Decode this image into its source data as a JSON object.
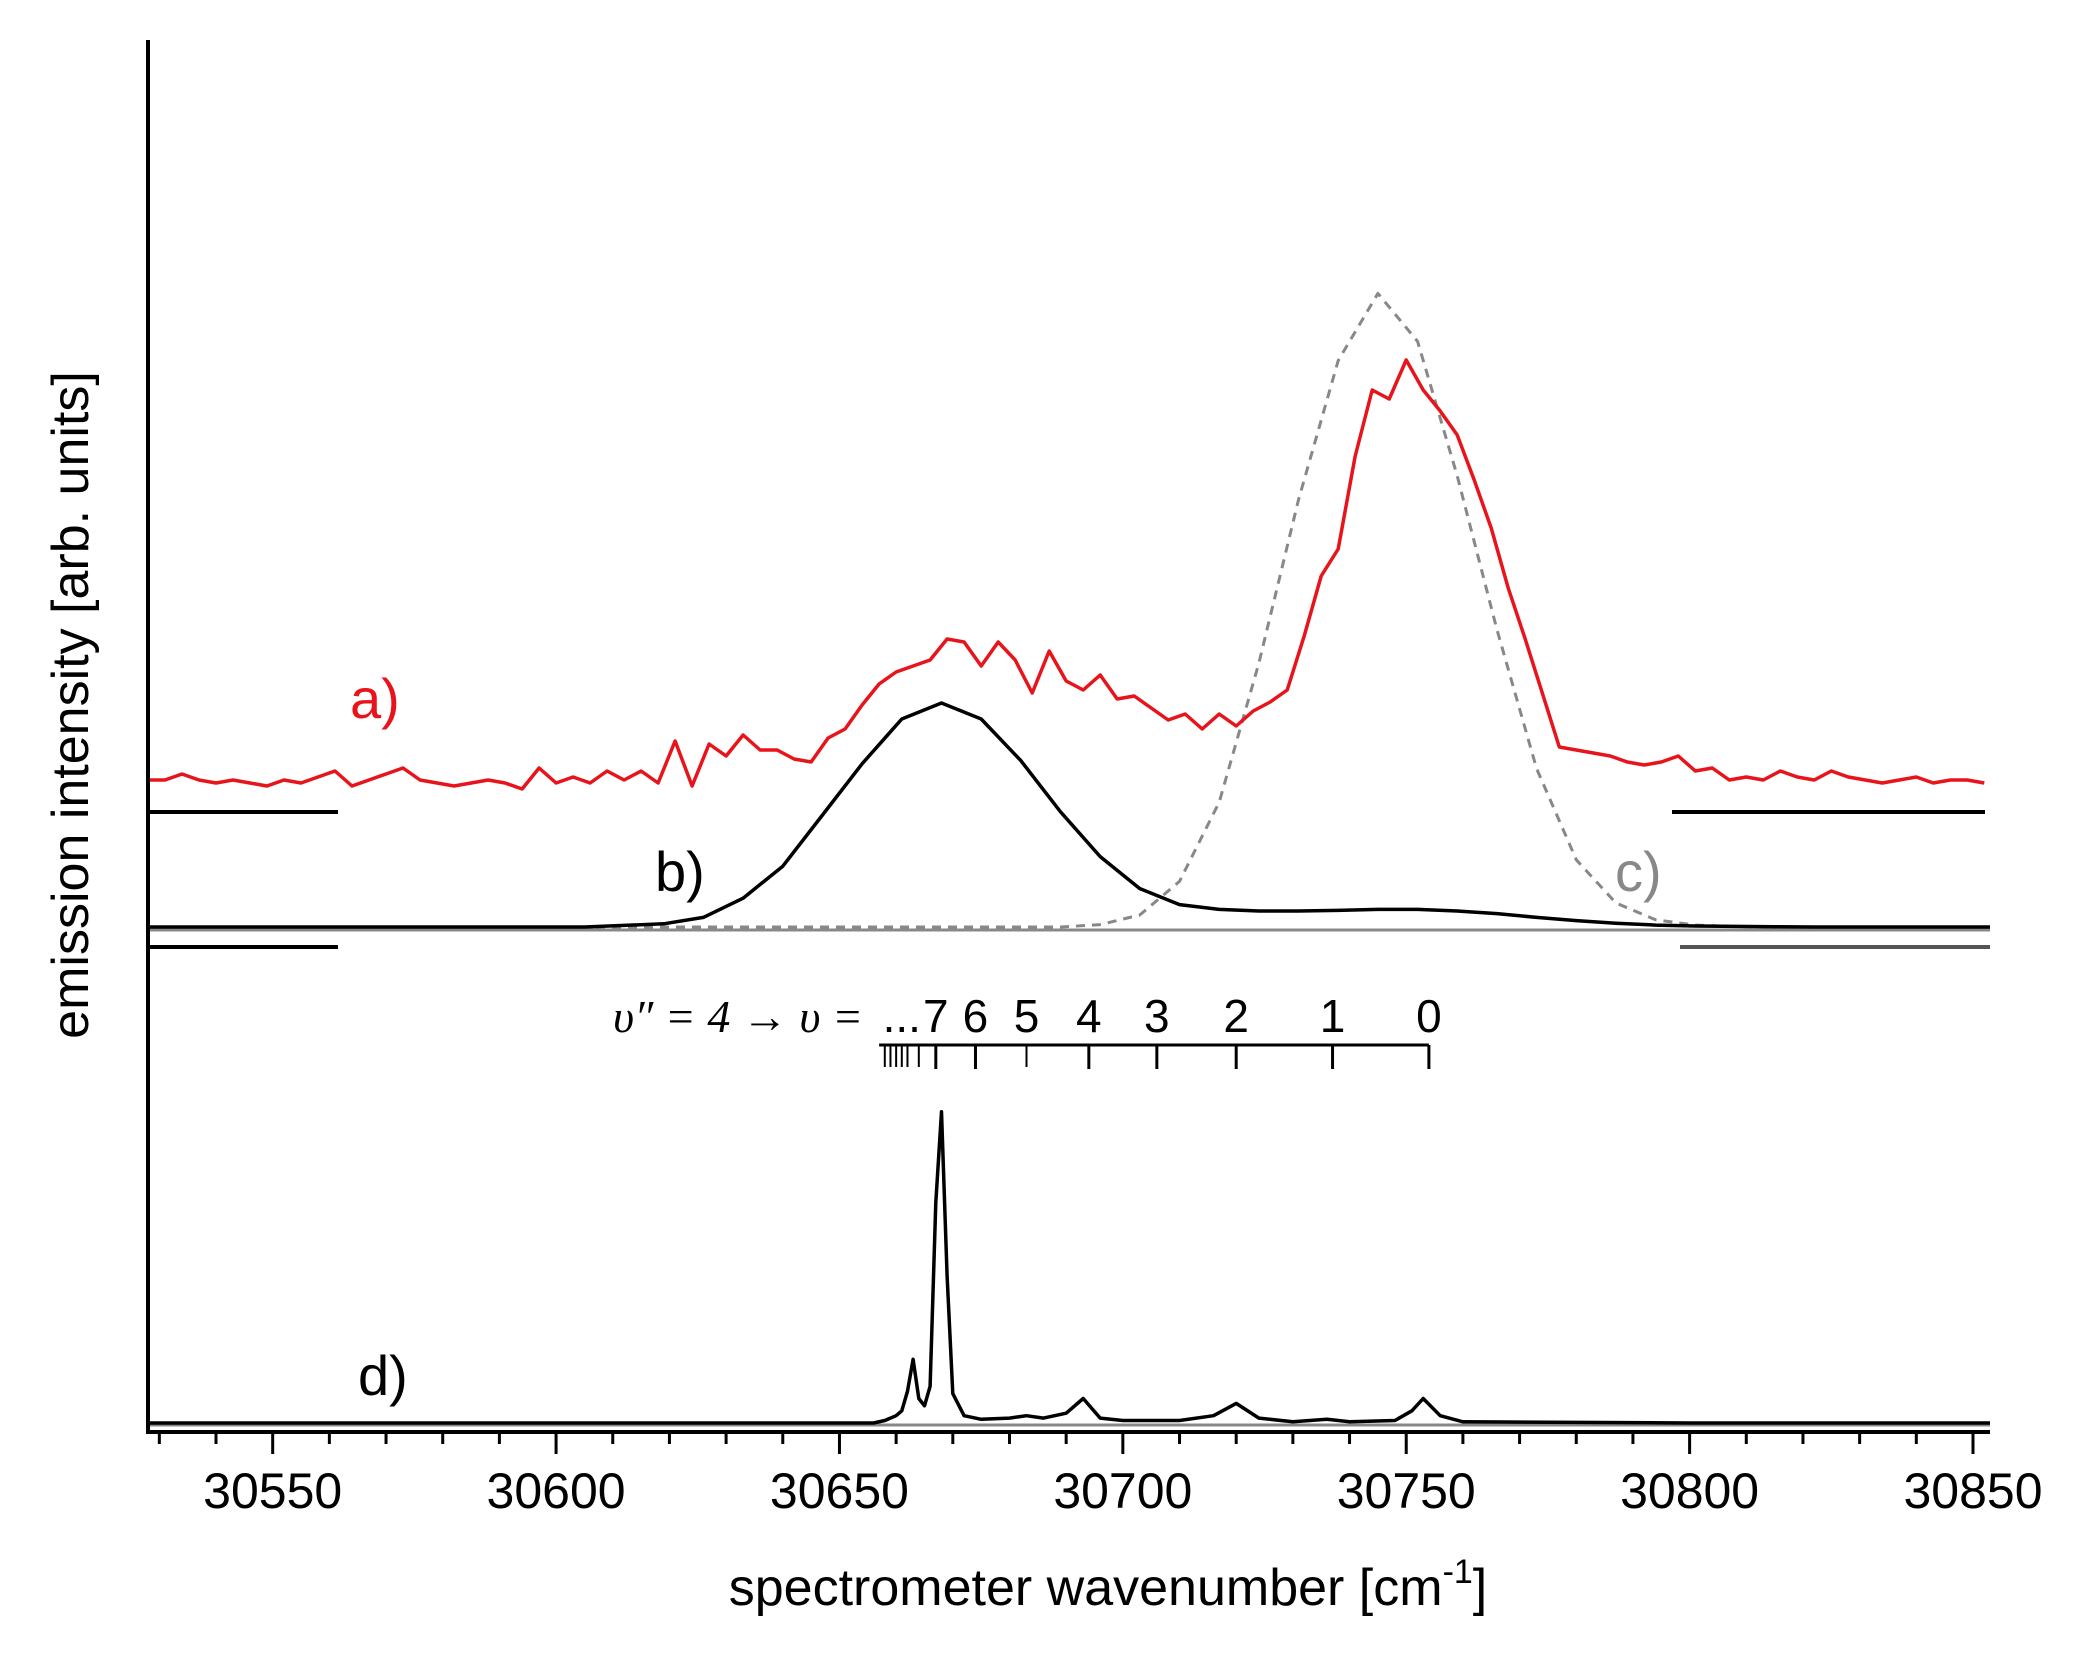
{
  "chart_data": {
    "type": "line",
    "xlabel": "spectrometer wavenumber [cm",
    "xlabel_sup": "-1",
    "xlabel_end": "]",
    "ylabel": "emission intensity [arb. units]",
    "xlim": [
      30528,
      30853
    ],
    "x_ticks": [
      30550,
      30600,
      30650,
      30700,
      30750,
      30800,
      30850
    ],
    "x_tick_labels": [
      "30550",
      "30600",
      "30650",
      "30700",
      "30750",
      "30800",
      "30850"
    ],
    "grid": false,
    "series": [
      {
        "name": "a)",
        "color": "#e8141b",
        "style": "solid",
        "baseline": 0,
        "x": [
          30528,
          30531,
          30534,
          30537,
          30540,
          30543,
          30546,
          30549,
          30552,
          30555,
          30558,
          30561,
          30564,
          30567,
          30570,
          30573,
          30576,
          30579,
          30582,
          30585,
          30588,
          30591,
          30594,
          30597,
          30600,
          30603,
          30606,
          30609,
          30612,
          30615,
          30618,
          30621,
          30624,
          30627,
          30630,
          30633,
          30636,
          30639,
          30642,
          30645,
          30648,
          30651,
          30654,
          30657,
          30660,
          30663,
          30666,
          30669,
          30672,
          30675,
          30678,
          30681,
          30684,
          30687,
          30690,
          30693,
          30696,
          30699,
          30702,
          30705,
          30708,
          30711,
          30714,
          30717,
          30720,
          30723,
          30726,
          30729,
          30732,
          30735,
          30738,
          30741,
          30744,
          30747,
          30750,
          30753,
          30756,
          30759,
          30762,
          30765,
          30768,
          30771,
          30774,
          30777,
          30780,
          30783,
          30786,
          30789,
          30792,
          30795,
          30798,
          30801,
          30804,
          30807,
          30810,
          30813,
          30816,
          30819,
          30822,
          30825,
          30828,
          30831,
          30834,
          30837,
          30840,
          30843,
          30846,
          30849,
          30852
        ],
        "y": [
          1.0,
          1.0,
          1.2,
          1.0,
          0.9,
          1.0,
          0.9,
          0.8,
          1.0,
          0.9,
          1.1,
          1.3,
          0.8,
          1.0,
          1.2,
          1.4,
          1.0,
          0.9,
          0.8,
          0.9,
          1.0,
          0.9,
          0.7,
          1.4,
          0.9,
          1.1,
          0.9,
          1.3,
          1.0,
          1.3,
          0.9,
          2.3,
          0.8,
          2.2,
          1.8,
          2.5,
          2.0,
          2.0,
          1.7,
          1.6,
          2.4,
          2.7,
          3.5,
          4.2,
          4.6,
          4.8,
          5.0,
          5.7,
          5.6,
          4.8,
          5.6,
          5.0,
          3.9,
          5.3,
          4.3,
          4.0,
          4.5,
          3.7,
          3.8,
          3.4,
          3.0,
          3.2,
          2.7,
          3.2,
          2.8,
          3.3,
          3.6,
          4.0,
          5.8,
          7.8,
          8.7,
          11.8,
          14.0,
          13.7,
          15.0,
          14.0,
          13.3,
          12.5,
          11.0,
          9.4,
          7.4,
          5.7,
          3.9,
          2.1,
          2.0,
          1.9,
          1.8,
          1.6,
          1.5,
          1.6,
          1.8,
          1.3,
          1.4,
          1.0,
          1.1,
          1.0,
          1.3,
          1.1,
          1.0,
          1.3,
          1.1,
          1.0,
          0.9,
          1.0,
          1.1,
          0.9,
          1.0,
          1.0,
          0.9
        ]
      },
      {
        "name": "b)",
        "color": "#000000",
        "style": "solid",
        "baseline": 0,
        "x": [
          30528,
          30535,
          30542,
          30549,
          30556,
          30563,
          30570,
          30577,
          30584,
          30591,
          30598,
          30605,
          30612,
          30619,
          30626,
          30633,
          30640,
          30647,
          30654,
          30661,
          30668,
          30675,
          30682,
          30689,
          30696,
          30703,
          30710,
          30717,
          30724,
          30731,
          30738,
          30745,
          30752,
          30759,
          30766,
          30773,
          30780,
          30787,
          30794,
          30801,
          30808,
          30815,
          30822,
          30829,
          30836,
          30843,
          30850,
          30853
        ],
        "y": [
          0,
          0,
          0,
          0,
          0,
          0,
          0,
          0,
          0,
          0,
          0,
          0,
          0.05,
          0.1,
          0.3,
          0.9,
          1.9,
          3.5,
          5.1,
          6.5,
          7.0,
          6.5,
          5.2,
          3.6,
          2.2,
          1.2,
          0.7,
          0.55,
          0.5,
          0.5,
          0.52,
          0.55,
          0.55,
          0.5,
          0.42,
          0.3,
          0.2,
          0.12,
          0.06,
          0.03,
          0.02,
          0.01,
          0,
          0,
          0,
          0,
          0,
          0
        ]
      },
      {
        "name": "c)",
        "color": "#888888",
        "style": "dashed",
        "baseline": 0,
        "x": [
          30528,
          30535,
          30542,
          30549,
          30556,
          30563,
          30570,
          30577,
          30584,
          30591,
          30598,
          30605,
          30612,
          30619,
          30626,
          30633,
          30640,
          30647,
          30654,
          30661,
          30668,
          30675,
          30682,
          30689,
          30696,
          30703,
          30710,
          30717,
          30724,
          30731,
          30738,
          30745,
          30752,
          30759,
          30766,
          30773,
          30780,
          30787,
          30794,
          30801,
          30808,
          30815,
          30822,
          30829,
          30836,
          30843,
          30850,
          30853
        ],
        "y": [
          0,
          0,
          0,
          0,
          0,
          0,
          0,
          0,
          0,
          0,
          0,
          0,
          0,
          0,
          0,
          0,
          0,
          0,
          0,
          0,
          0,
          0,
          0,
          0,
          0.05,
          0.25,
          0.95,
          2.6,
          5.5,
          8.9,
          11.8,
          13.2,
          12.2,
          9.4,
          6.2,
          3.3,
          1.4,
          0.5,
          0.15,
          0.04,
          0.01,
          0,
          0,
          0,
          0,
          0,
          0,
          0
        ]
      },
      {
        "name": "d)",
        "color": "#000000",
        "style": "solid",
        "baseline": 0,
        "x": [
          30528,
          30640,
          30656,
          30658,
          30660,
          30661,
          30662,
          30663,
          30664,
          30665,
          30666,
          30667,
          30668,
          30669,
          30670,
          30672,
          30675,
          30680,
          30683,
          30686,
          30690,
          30693,
          30696,
          30700,
          30710,
          30716,
          30720,
          30724,
          30730,
          30736,
          30740,
          30748,
          30751,
          30753,
          30756,
          30760,
          30800,
          30853
        ],
        "y": [
          0,
          0,
          0,
          0.1,
          0.3,
          0.5,
          1.3,
          2.6,
          1.0,
          0.7,
          1.5,
          9.0,
          12.7,
          6.0,
          1.2,
          0.3,
          0.15,
          0.2,
          0.3,
          0.2,
          0.4,
          1.0,
          0.2,
          0.1,
          0.1,
          0.3,
          0.8,
          0.2,
          0.05,
          0.15,
          0.05,
          0.1,
          0.5,
          1.0,
          0.3,
          0.05,
          0,
          0
        ]
      }
    ],
    "progression": {
      "prefix": "υ″ = 4 → υ =",
      "labels": [
        {
          "text": "...",
          "x": 30661
        },
        {
          "text": "7",
          "x": 30667
        },
        {
          "text": "6",
          "x": 30674
        },
        {
          "text": "5",
          "x": 30683
        },
        {
          "text": "4",
          "x": 30694
        },
        {
          "text": "3",
          "x": 30706
        },
        {
          "text": "2",
          "x": 30720
        },
        {
          "text": "1",
          "x": 30737
        },
        {
          "text": "0",
          "x": 30754
        }
      ],
      "line_range": [
        30657,
        30754
      ],
      "ticks_major": [
        30667,
        30674,
        30694,
        30706,
        30720,
        30737,
        30754
      ],
      "ticks_minor": [
        30658,
        30659,
        30660,
        30661,
        30662,
        30664,
        30683
      ]
    }
  }
}
